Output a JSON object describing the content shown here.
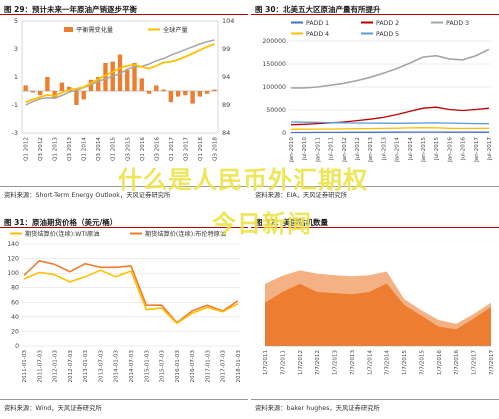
{
  "panels": {
    "p1": {
      "title": "图 29：预计未来一年原油产销逐步平衡",
      "source": "资料来源：Short-Term Energy Outlook，天风证券研究所"
    },
    "p2": {
      "title": "图 30：北美五大区原油产量有所提升",
      "source": "资料来源：EIA，天风证券研究所"
    },
    "p3": {
      "title": "图 31：原油期货价格（美元/桶）",
      "source": "资料来源：Wind，天风证券研究所"
    },
    "p4": {
      "title": "图 32：美国钻机数量",
      "source": "资料来源：baker hughes，天风证券研究所"
    }
  },
  "overlay": {
    "line1": "什么是人民币外汇期权",
    "line2": "今日新闻"
  },
  "colors": {
    "orange": "#ed7d31",
    "gold": "#ffc000",
    "gray": "#a5a5a5",
    "blue": "#4472c4",
    "teal": "#5b9bd5",
    "red": "#c00000",
    "axis": "#666666",
    "grid": "#d9d9d9"
  },
  "chart_data": [
    {
      "id": "p1",
      "type": "bar+line",
      "title": "",
      "categories": [
        "Q1 2012",
        "Q2",
        "Q3",
        "Q4",
        "Q1 2013",
        "Q2",
        "Q3",
        "Q4",
        "Q1 2014",
        "Q2",
        "Q3",
        "Q4",
        "Q1 2015",
        "Q2",
        "Q3",
        "Q4",
        "Q1 2016",
        "Q2",
        "Q3",
        "Q4",
        "Q1 2017",
        "Q2",
        "Q3",
        "Q4",
        "Q1 2018",
        "Q2",
        "Q3 2018"
      ],
      "tick_labels": [
        "Q1 2012",
        "Q3 2012",
        "Q1 2013",
        "Q3 2013",
        "Q1 2014",
        "Q3 2014",
        "Q1 2015",
        "Q3 2015",
        "Q1 2016",
        "Q3 2016",
        "Q1 2017",
        "Q3 2017",
        "Q1 2018",
        "Q3 2018"
      ],
      "series": [
        {
          "name": "平衡需变化量",
          "type": "bar",
          "axis": "left",
          "values": [
            0.4,
            -0.1,
            -0.3,
            1.0,
            -0.5,
            0.6,
            0.3,
            -1.0,
            -0.6,
            0.8,
            1.0,
            2.0,
            2.1,
            2.6,
            1.5,
            2.0,
            0.9,
            -0.2,
            0.4,
            0.1,
            -0.8,
            -0.4,
            -0.3,
            -0.9,
            -0.4,
            -0.2,
            0.1
          ]
        },
        {
          "name": "全球产量",
          "type": "line",
          "axis": "right",
          "values": [
            89.5,
            90.0,
            90.4,
            90.8,
            90.6,
            91.2,
            91.7,
            91.9,
            92.2,
            92.9,
            93.6,
            94.3,
            94.9,
            95.6,
            96.0,
            96.2,
            95.8,
            95.5,
            96.0,
            96.6,
            96.7,
            97.1,
            97.6,
            98.2,
            98.8,
            99.4,
            99.9
          ]
        },
        {
          "name": "",
          "type": "line",
          "axis": "right",
          "values": [
            89.0,
            89.6,
            90.1,
            90.3,
            90.2,
            90.7,
            91.3,
            91.6,
            92.1,
            92.6,
            93.2,
            93.7,
            94.1,
            94.6,
            95.4,
            95.8,
            95.9,
            96.3,
            96.9,
            97.3,
            97.9,
            98.4,
            98.9,
            99.4,
            99.9,
            100.3,
            100.6
          ]
        }
      ],
      "ylim_left": [
        -3,
        5
      ],
      "yticks_left": [
        -3,
        -1,
        1,
        3,
        5
      ],
      "ylim_right": [
        84,
        104
      ],
      "yticks_right": [
        84,
        89,
        94,
        99,
        104
      ],
      "legend": "top-right"
    },
    {
      "id": "p2",
      "type": "line",
      "title": "",
      "x": [
        "Jan-2010",
        "Jul-2010",
        "Jan-2011",
        "Jul-2011",
        "Jan-2012",
        "Jul-2012",
        "Jan-2013",
        "Jul-2013",
        "Jan-2014",
        "Jul-2014",
        "Jan-2015",
        "Jul-2015",
        "Jan-2016",
        "Jul-2016",
        "Jan-2017",
        "Jul-2017"
      ],
      "series": [
        {
          "name": "PADD 1",
          "values": [
            1000,
            1100,
            1200,
            1300,
            1400,
            1500,
            1600,
            1700,
            1800,
            1900,
            2000,
            1900,
            1800,
            1700,
            1700,
            1800
          ]
        },
        {
          "name": "PADD 2",
          "values": [
            18000,
            19000,
            20500,
            22000,
            24000,
            27000,
            30000,
            34000,
            40000,
            47000,
            54000,
            56000,
            51000,
            49000,
            51000,
            54000
          ]
        },
        {
          "name": "PADD 3",
          "values": [
            98000,
            98000,
            100000,
            104000,
            108000,
            114000,
            121000,
            130000,
            140000,
            152000,
            165000,
            168000,
            161000,
            159000,
            168000,
            182000
          ]
        },
        {
          "name": "PADD 4",
          "values": [
            8000,
            8200,
            8400,
            8700,
            9000,
            9300,
            9600,
            10000,
            10500,
            11000,
            11500,
            11200,
            10300,
            9700,
            9900,
            10300
          ]
        },
        {
          "name": "PADD 5",
          "values": [
            24000,
            23500,
            23000,
            22500,
            22000,
            21800,
            21500,
            21200,
            21000,
            21300,
            21700,
            22000,
            21500,
            20800,
            20500,
            20300
          ]
        }
      ],
      "ylim": [
        0,
        200000
      ],
      "yticks": [
        0,
        50000,
        100000,
        150000,
        200000
      ],
      "ytick_labels": [
        "0",
        "50000",
        "100000",
        "150000",
        "200000"
      ],
      "legend": "top"
    },
    {
      "id": "p3",
      "type": "line",
      "title": "",
      "x": [
        "2011-01-03",
        "2011-07-03",
        "2012-01-03",
        "2012-07-03",
        "2013-01-03",
        "2013-07-03",
        "2014-01-03",
        "2014-07-03",
        "2015-01-03",
        "2015-07-03",
        "2016-01-03",
        "2016-07-03",
        "2017-01-03",
        "2017-07-03",
        "2018-01-03"
      ],
      "series": [
        {
          "name": "期货结算价(连续):WTI原油",
          "values": [
            92,
            101,
            98,
            88,
            95,
            104,
            95,
            103,
            50,
            52,
            31,
            45,
            53,
            47,
            58
          ]
        },
        {
          "name": "期货结算价(连续):布伦特原油",
          "values": [
            97,
            117,
            112,
            102,
            113,
            108,
            108,
            110,
            56,
            56,
            32,
            48,
            56,
            48,
            62
          ]
        }
      ],
      "ylim": [
        0,
        140
      ],
      "yticks": [
        0,
        20,
        40,
        60,
        80,
        100,
        120,
        140
      ],
      "legend": "top"
    },
    {
      "id": "p4",
      "type": "area",
      "title": "",
      "x": [
        "1/7/2011",
        "7/7/2011",
        "1/7/2012",
        "7/7/2012",
        "1/7/2013",
        "7/7/2013",
        "1/7/2014",
        "7/7/2014",
        "1/7/2015",
        "7/7/2015",
        "1/7/2016",
        "7/7/2016",
        "1/7/2017",
        "7/7/2017"
      ],
      "series": [
        {
          "name": "",
          "values": [
            1150,
            1300,
            1400,
            1340,
            1310,
            1290,
            1310,
            1380,
            870,
            660,
            480,
            410,
            590,
            800
          ]
        },
        {
          "name": "",
          "values": [
            800,
            1000,
            1150,
            1000,
            980,
            960,
            1000,
            1160,
            760,
            560,
            360,
            310,
            510,
            720
          ]
        }
      ],
      "ylim": [
        0,
        2000
      ],
      "legend": "none"
    }
  ]
}
